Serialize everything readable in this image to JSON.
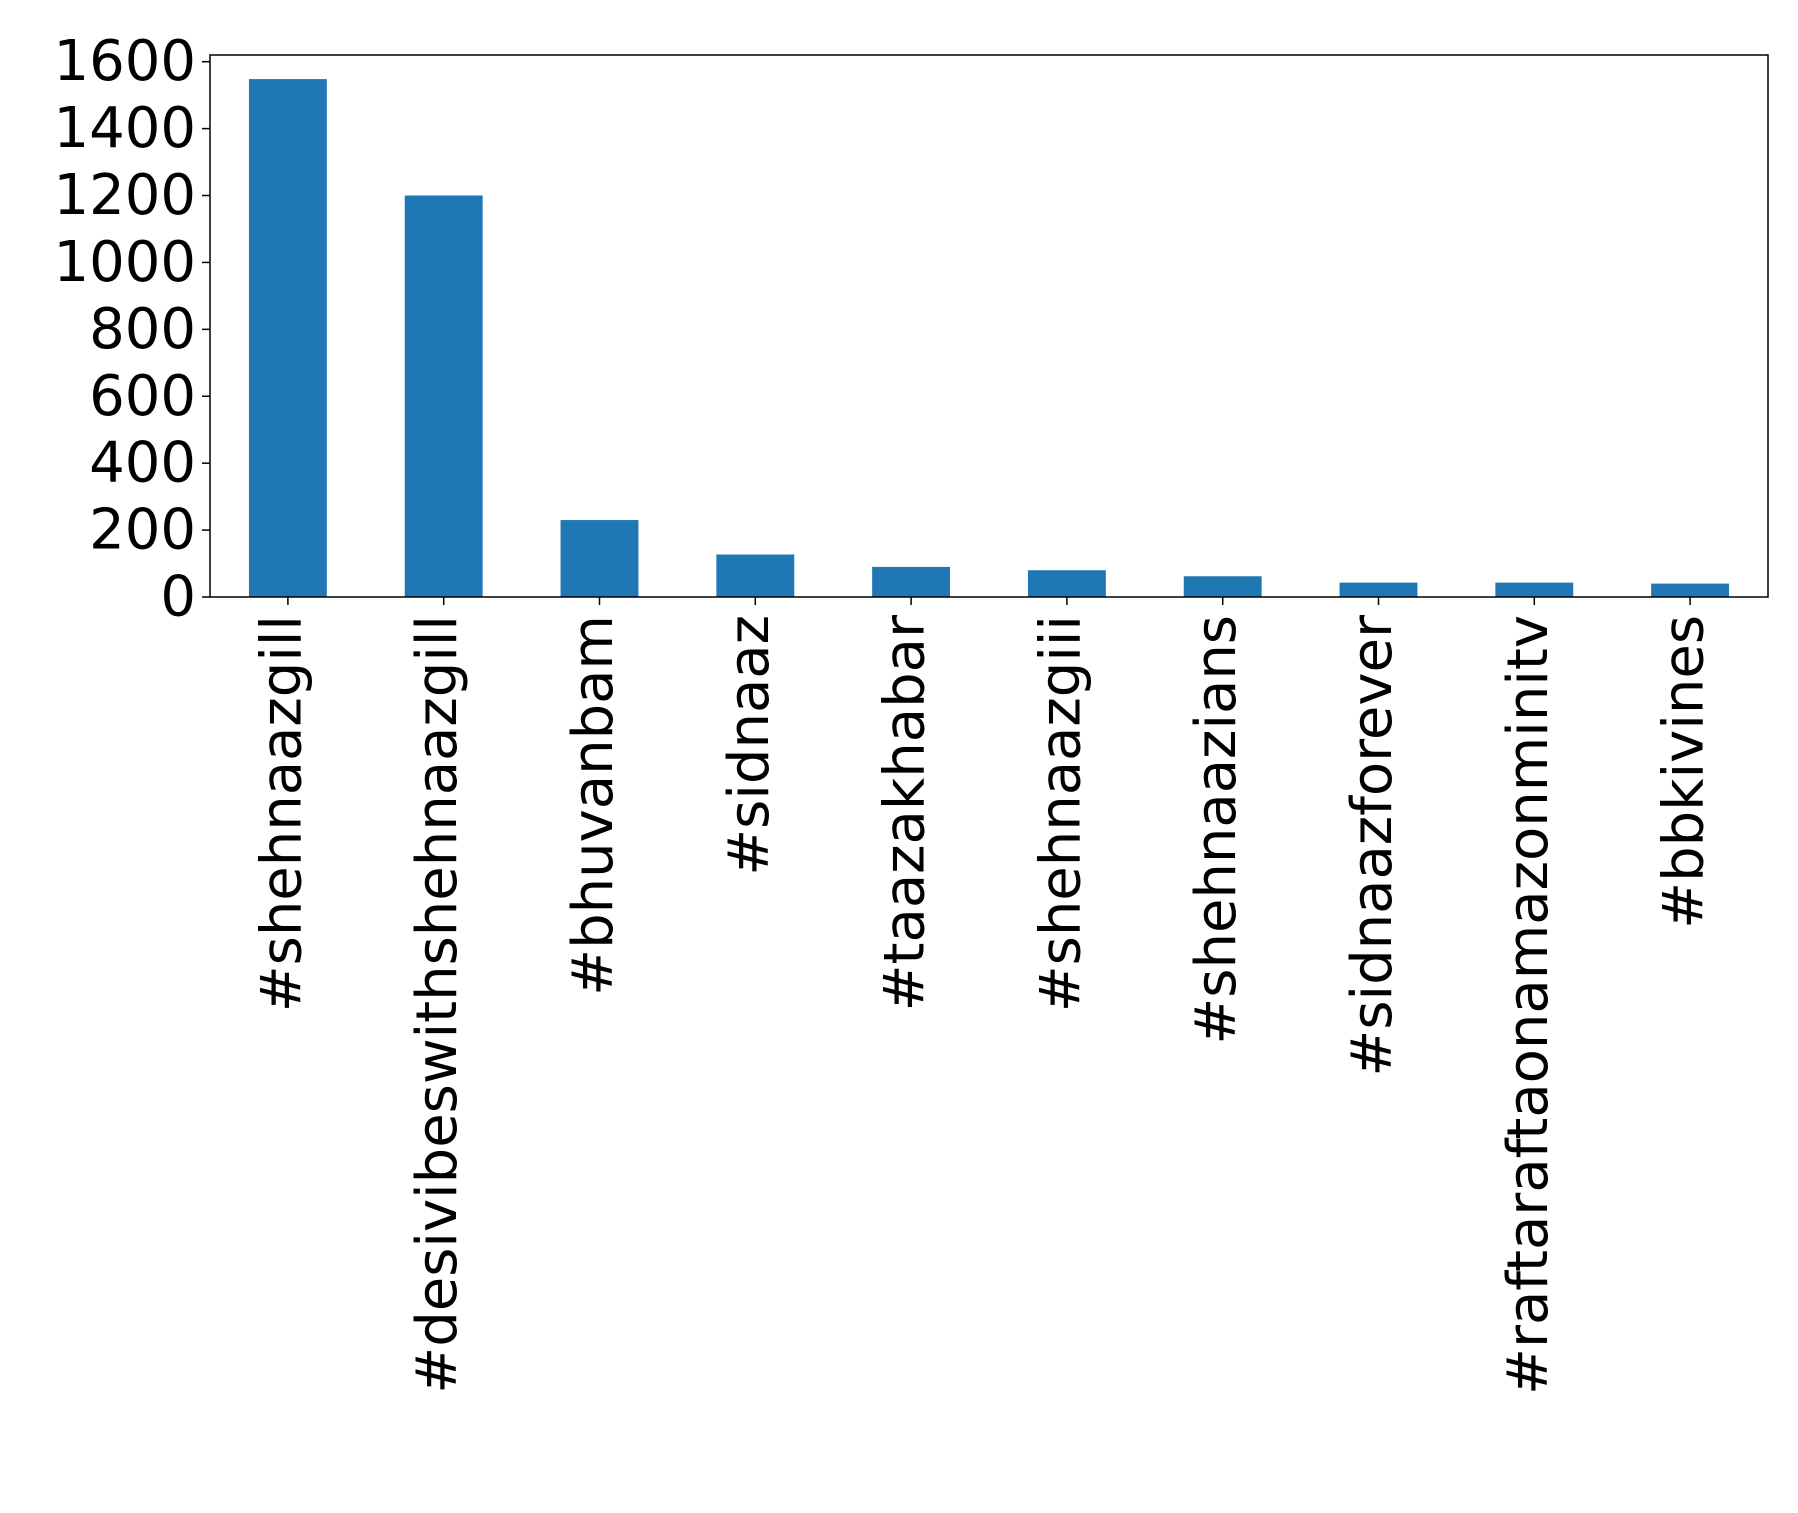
{
  "chart_data": {
    "type": "bar",
    "title": "",
    "xlabel": "",
    "ylabel": "",
    "categories": [
      "#shehnaazgill",
      "#desivibeswithshehnaazgill",
      "#bhuvanbam",
      "#sidnaaz",
      "#taazakhabar",
      "#shehnaazgiii",
      "#shehnaazians",
      "#sidnaazforever",
      "#raftaraftaonamazonminitv",
      "#bbkivines"
    ],
    "values": [
      1548,
      1200,
      230,
      127,
      90,
      80,
      62,
      43,
      43,
      40
    ],
    "ylim": [
      0,
      1620
    ],
    "yticks": [
      0,
      200,
      400,
      600,
      800,
      1000,
      1200,
      1400,
      1600
    ],
    "grid": false,
    "legend": "none",
    "colors": {
      "bar": "#1f77b4",
      "axis": "#000000",
      "text": "#000000"
    }
  }
}
